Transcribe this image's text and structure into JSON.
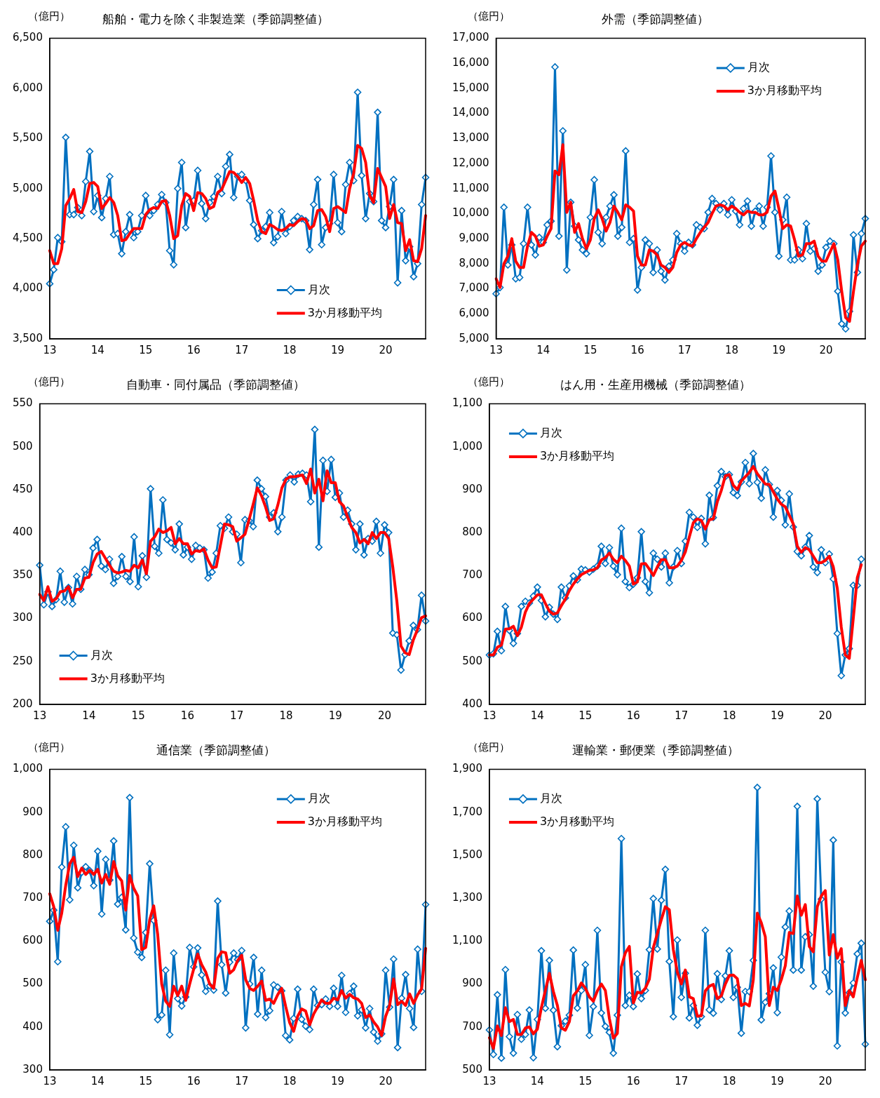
{
  "chart_data": [
    {
      "type": "line",
      "title": "船舶・電力を除く非製造業（季節調整値）",
      "ylabel": "（億円）",
      "legend": "bottom right",
      "categories": [
        "13",
        null,
        null,
        null,
        null,
        null,
        null,
        null,
        null,
        null,
        null,
        null,
        "14",
        null,
        null,
        null,
        null,
        null,
        null,
        null,
        null,
        null,
        null,
        null,
        "15",
        null,
        null,
        null,
        null,
        null,
        null,
        null,
        null,
        null,
        null,
        null,
        "16",
        null,
        null,
        null,
        null,
        null,
        null,
        null,
        null,
        null,
        null,
        null,
        "17",
        null,
        null,
        null,
        null,
        null,
        null,
        null,
        null,
        null,
        null,
        null,
        "18",
        null,
        null,
        null,
        null,
        null,
        null,
        null,
        null,
        null,
        null,
        null,
        "19",
        null,
        null,
        null,
        null,
        null,
        null,
        null,
        null,
        null,
        null,
        null,
        "20",
        null,
        null,
        null,
        null,
        null,
        null,
        null,
        null,
        null,
        null
      ],
      "ylim": [
        3500,
        6500
      ],
      "yticks": [
        {
          "value": 3500,
          "label": "3,500"
        },
        {
          "value": 4000,
          "label": "4,000"
        },
        {
          "value": 4500,
          "label": "4,500"
        },
        {
          "value": 5000,
          "label": "5,000"
        },
        {
          "value": 5500,
          "label": "5,500"
        },
        {
          "value": 6000,
          "label": "6,000"
        },
        {
          "value": 6500,
          "label": "6,500"
        }
      ],
      "series": [
        {
          "name": "月次",
          "color": "#0070c0",
          "marker": "diamond",
          "values": [
            4050,
            4190,
            4510,
            4470,
            5510,
            4740,
            4740,
            4810,
            4730,
            5070,
            5370,
            4770,
            4930,
            4710,
            4900,
            5120,
            4540,
            4550,
            4350,
            4570,
            4740,
            4510,
            4570,
            4730,
            4930,
            4730,
            4780,
            4840,
            4940,
            4860,
            4380,
            4240,
            5000,
            5260,
            4610,
            4870,
            4880,
            5180,
            4850,
            4700,
            4860,
            4920,
            5120,
            4950,
            5220,
            5340,
            4910,
            5120,
            5140,
            5080,
            4880,
            4640,
            4500,
            4580,
            4620,
            4760,
            4460,
            4520,
            4770,
            4550,
            4620,
            4680,
            4720,
            4700,
            4680,
            4390,
            4840,
            5090,
            4440,
            4610,
            4650,
            5140,
            4660,
            4570,
            5040,
            5260,
            5080,
            5960,
            5130,
            4700,
            4950,
            4870,
            5760,
            4680,
            4610,
            4820,
            5090,
            4060,
            4780,
            4280,
            4420,
            4120,
            4250,
            4840,
            5110
          ]
        },
        {
          "name": "3か月移動平均",
          "color": "#ff0000",
          "marker": "none",
          "values": [
            4380,
            4250,
            4250,
            4400,
            4830,
            4900,
            4990,
            4770,
            4760,
            4870,
            5050,
            5060,
            5020,
            4800,
            4850,
            4910,
            4860,
            4730,
            4480,
            4490,
            4550,
            4600,
            4600,
            4600,
            4740,
            4790,
            4810,
            4800,
            4870,
            4880,
            4730,
            4500,
            4530,
            4830,
            4950,
            4920,
            4780,
            4960,
            4950,
            4900,
            4800,
            4820,
            4960,
            4990,
            5080,
            5170,
            5160,
            5120,
            5060,
            5110,
            5050,
            4880,
            4680,
            4570,
            4550,
            4640,
            4620,
            4590,
            4580,
            4600,
            4640,
            4630,
            4670,
            4700,
            4690,
            4600,
            4630,
            4780,
            4790,
            4720,
            4570,
            4800,
            4820,
            4790,
            4760,
            5000,
            5150,
            5430,
            5400,
            5260,
            4930,
            4860,
            5200,
            5110,
            5020,
            4700,
            4840,
            4660,
            4650,
            4380,
            4490,
            4280,
            4270,
            4400,
            4730
          ]
        }
      ]
    },
    {
      "type": "line",
      "title": "外需（季節調整値）",
      "ylabel": "（億円）",
      "legend": "top right",
      "categories": [
        "13",
        null,
        null,
        null,
        null,
        null,
        null,
        null,
        null,
        null,
        null,
        null,
        "14",
        null,
        null,
        null,
        null,
        null,
        null,
        null,
        null,
        null,
        null,
        null,
        "15",
        null,
        null,
        null,
        null,
        null,
        null,
        null,
        null,
        null,
        null,
        null,
        "16",
        null,
        null,
        null,
        null,
        null,
        null,
        null,
        null,
        null,
        null,
        null,
        "17",
        null,
        null,
        null,
        null,
        null,
        null,
        null,
        null,
        null,
        null,
        null,
        "18",
        null,
        null,
        null,
        null,
        null,
        null,
        null,
        null,
        null,
        null,
        null,
        "19",
        null,
        null,
        null,
        null,
        null,
        null,
        null,
        null,
        null,
        null,
        null,
        "20",
        null,
        null,
        null,
        null,
        null,
        null,
        null,
        null,
        null,
        null
      ],
      "ylim": [
        5000,
        17000
      ],
      "yticks": [
        {
          "value": 5000,
          "label": "5,000"
        },
        {
          "value": 6000,
          "label": "6,000"
        },
        {
          "value": 7000,
          "label": "7,000"
        },
        {
          "value": 8000,
          "label": "8,000"
        },
        {
          "value": 9000,
          "label": "9,000"
        },
        {
          "value": 10000,
          "label": "10,000"
        },
        {
          "value": 11000,
          "label": "11,000"
        },
        {
          "value": 12000,
          "label": "12,000"
        },
        {
          "value": 13000,
          "label": "13,000"
        },
        {
          "value": 14000,
          "label": "14,000"
        },
        {
          "value": 15000,
          "label": "15,000"
        },
        {
          "value": 16000,
          "label": "16,000"
        },
        {
          "value": 17000,
          "label": "17,000"
        }
      ],
      "series": [
        {
          "name": "月次",
          "color": "#0070c0",
          "marker": "diamond",
          "values": [
            6800,
            7050,
            10250,
            7950,
            8750,
            7400,
            7450,
            8800,
            10250,
            8750,
            8350,
            9050,
            8850,
            9550,
            9700,
            15850,
            9100,
            13300,
            7750,
            10450,
            9500,
            8950,
            8550,
            8400,
            9850,
            11350,
            9250,
            8800,
            9850,
            10300,
            10750,
            9100,
            9450,
            12500,
            8850,
            9000,
            6950,
            7850,
            8950,
            8800,
            7650,
            8550,
            7700,
            7350,
            7900,
            8150,
            9200,
            8800,
            8500,
            8850,
            8750,
            9550,
            9450,
            9400,
            10050,
            10600,
            10400,
            10150,
            10400,
            9950,
            10550,
            10100,
            9550,
            10200,
            10500,
            9500,
            10100,
            10300,
            9500,
            10250,
            12300,
            10050,
            8300,
            9750,
            10650,
            8150,
            8150,
            8550,
            8200,
            9600,
            8500,
            8600,
            7700,
            7950,
            8650,
            8900,
            8800,
            6900,
            5600,
            5400,
            6100,
            9150,
            7650,
            9200,
            9800
          ]
        },
        {
          "name": "3か月移動平均",
          "color": "#ff0000",
          "marker": "none",
          "values": [
            7400,
            7050,
            8000,
            8300,
            9000,
            8100,
            7850,
            7850,
            8700,
            9250,
            9100,
            8700,
            8750,
            9100,
            9400,
            11700,
            11550,
            12750,
            10050,
            10450,
            9250,
            9600,
            9000,
            8600,
            8950,
            9800,
            10150,
            9800,
            9300,
            9650,
            10300,
            10050,
            9750,
            10350,
            10250,
            10100,
            8300,
            7950,
            7950,
            8550,
            8500,
            8350,
            7950,
            7850,
            7650,
            7850,
            8450,
            8750,
            8850,
            8750,
            8700,
            9000,
            9250,
            9450,
            9650,
            10000,
            10300,
            10350,
            10300,
            10150,
            10300,
            10200,
            10050,
            9950,
            10100,
            10050,
            10050,
            9950,
            9950,
            10050,
            10700,
            10900,
            10200,
            9400,
            9550,
            9500,
            8950,
            8300,
            8350,
            8800,
            8800,
            8900,
            8300,
            8100,
            8100,
            8450,
            8800,
            8150,
            6900,
            5850,
            5700,
            6900,
            7950,
            8700,
            8900
          ]
        }
      ]
    },
    {
      "type": "line",
      "title": "自動車・同付属品（季節調整値）",
      "ylabel": "（億円）",
      "legend": "bottom left",
      "categories": [
        "13",
        null,
        null,
        null,
        null,
        null,
        null,
        null,
        null,
        null,
        null,
        null,
        "14",
        null,
        null,
        null,
        null,
        null,
        null,
        null,
        null,
        null,
        null,
        null,
        "15",
        null,
        null,
        null,
        null,
        null,
        null,
        null,
        null,
        null,
        null,
        null,
        "16",
        null,
        null,
        null,
        null,
        null,
        null,
        null,
        null,
        null,
        null,
        null,
        "17",
        null,
        null,
        null,
        null,
        null,
        null,
        null,
        null,
        null,
        null,
        null,
        "18",
        null,
        null,
        null,
        null,
        null,
        null,
        null,
        null,
        null,
        null,
        null,
        "19",
        null,
        null,
        null,
        null,
        null,
        null,
        null,
        null,
        null,
        null,
        null,
        "20",
        null,
        null,
        null,
        null,
        null,
        null,
        null,
        null,
        null,
        null
      ],
      "ylim": [
        200,
        550
      ],
      "yticks": [
        200,
        250,
        300,
        350,
        400,
        450,
        500,
        550
      ],
      "series": [
        {
          "name": "月次",
          "color": "#0070c0",
          "marker": "diamond",
          "values": [
            362,
            316,
            331,
            314,
            322,
            355,
            319,
            336,
            317,
            349,
            334,
            357,
            351,
            382,
            392,
            361,
            357,
            369,
            341,
            349,
            372,
            349,
            343,
            395,
            337,
            373,
            348,
            451,
            384,
            376,
            438,
            392,
            388,
            380,
            410,
            374,
            383,
            369,
            385,
            382,
            380,
            347,
            354,
            376,
            408,
            405,
            418,
            401,
            398,
            365,
            415,
            414,
            407,
            461,
            451,
            442,
            418,
            423,
            401,
            418,
            461,
            467,
            459,
            468,
            469,
            467,
            436,
            520,
            383,
            484,
            448,
            485,
            441,
            446,
            418,
            426,
            410,
            380,
            410,
            374,
            393,
            390,
            413,
            376,
            409,
            400,
            283,
            281,
            240,
            258,
            274,
            292,
            287,
            327,
            297
          ]
        },
        {
          "name": "3か月移動平均",
          "color": "#ff0000",
          "marker": "none",
          "values": [
            328,
            321,
            337,
            320,
            323,
            331,
            332,
            337,
            324,
            334,
            334,
            347,
            348,
            365,
            375,
            378,
            370,
            362,
            355,
            353,
            354,
            356,
            355,
            362,
            359,
            368,
            352,
            390,
            395,
            404,
            400,
            402,
            406,
            387,
            393,
            387,
            387,
            375,
            379,
            378,
            381,
            368,
            359,
            360,
            385,
            410,
            409,
            407,
            390,
            394,
            398,
            415,
            433,
            452,
            443,
            430,
            414,
            416,
            432,
            452,
            462,
            465,
            465,
            466,
            467,
            457,
            474,
            446,
            462,
            437,
            472,
            458,
            458,
            436,
            431,
            418,
            406,
            400,
            388,
            392,
            387,
            400,
            393,
            400,
            400,
            393,
            360,
            320,
            268,
            260,
            258,
            275,
            287,
            301,
            303
          ]
        }
      ]
    },
    {
      "type": "line",
      "title": "はん用・生産用機械（季節調整値）",
      "ylabel": "（億円）",
      "legend": "top left",
      "categories": [
        "13",
        null,
        null,
        null,
        null,
        null,
        null,
        null,
        null,
        null,
        null,
        null,
        "14",
        null,
        null,
        null,
        null,
        null,
        null,
        null,
        null,
        null,
        null,
        null,
        "15",
        null,
        null,
        null,
        null,
        null,
        null,
        null,
        null,
        null,
        null,
        null,
        "16",
        null,
        null,
        null,
        null,
        null,
        null,
        null,
        null,
        null,
        null,
        null,
        "17",
        null,
        null,
        null,
        null,
        null,
        null,
        null,
        null,
        null,
        null,
        null,
        "18",
        null,
        null,
        null,
        null,
        null,
        null,
        null,
        null,
        null,
        null,
        null,
        "19",
        null,
        null,
        null,
        null,
        null,
        null,
        null,
        null,
        null,
        null,
        null,
        "20",
        null,
        null,
        null,
        null,
        null,
        null,
        null,
        null,
        null,
        null
      ],
      "ylim": [
        400,
        1100
      ],
      "yticks": [
        400,
        500,
        600,
        700,
        800,
        900,
        {
          "value": 1000,
          "label": "1,000"
        },
        {
          "value": 1100,
          "label": "1,100"
        }
      ],
      "series": [
        {
          "name": "月次",
          "color": "#0070c0",
          "marker": "diamond",
          "values": [
            515,
            518,
            570,
            525,
            628,
            572,
            542,
            565,
            628,
            640,
            636,
            652,
            673,
            642,
            604,
            626,
            610,
            598,
            673,
            648,
            676,
            699,
            690,
            715,
            713,
            708,
            715,
            722,
            768,
            728,
            765,
            722,
            702,
            810,
            686,
            672,
            680,
            695,
            802,
            686,
            660,
            752,
            738,
            720,
            752,
            683,
            720,
            758,
            728,
            780,
            847,
            836,
            812,
            833,
            774,
            887,
            835,
            909,
            942,
            930,
            935,
            893,
            886,
            918,
            963,
            914,
            984,
            917,
            880,
            946,
            912,
            836,
            898,
            875,
            818,
            890,
            813,
            756,
            746,
            766,
            793,
            720,
            707,
            760,
            730,
            750,
            692,
            565,
            467,
            515,
            530,
            677,
            677,
            738,
            null
          ]
        },
        {
          "name": "3か月移動平均",
          "color": "#ff0000",
          "marker": "none",
          "values": [
            515,
            515,
            533,
            538,
            575,
            576,
            582,
            560,
            580,
            615,
            635,
            645,
            655,
            655,
            635,
            617,
            610,
            613,
            630,
            645,
            665,
            680,
            692,
            702,
            707,
            712,
            713,
            718,
            736,
            742,
            752,
            738,
            730,
            745,
            735,
            722,
            680,
            685,
            727,
            728,
            715,
            700,
            720,
            737,
            737,
            718,
            718,
            722,
            735,
            755,
            790,
            823,
            832,
            828,
            808,
            830,
            832,
            872,
            898,
            932,
            935,
            910,
            900,
            920,
            930,
            940,
            954,
            937,
            925,
            913,
            912,
            895,
            878,
            866,
            860,
            840,
            820,
            768,
            754,
            765,
            760,
            745,
            730,
            730,
            735,
            745,
            720,
            670,
            580,
            515,
            507,
            600,
            695,
            725,
            null
          ]
        }
      ]
    },
    {
      "type": "line",
      "title": "通信業（季節調整値）",
      "ylabel": "（億円）",
      "legend": "top right",
      "categories": [
        "13",
        null,
        null,
        null,
        null,
        null,
        null,
        null,
        null,
        null,
        null,
        null,
        "14",
        null,
        null,
        null,
        null,
        null,
        null,
        null,
        null,
        null,
        null,
        null,
        "15",
        null,
        null,
        null,
        null,
        null,
        null,
        null,
        null,
        null,
        null,
        null,
        "16",
        null,
        null,
        null,
        null,
        null,
        null,
        null,
        null,
        null,
        null,
        null,
        "17",
        null,
        null,
        null,
        null,
        null,
        null,
        null,
        null,
        null,
        null,
        null,
        "18",
        null,
        null,
        null,
        null,
        null,
        null,
        null,
        null,
        null,
        null,
        null,
        "19",
        null,
        null,
        null,
        null,
        null,
        null,
        null,
        null,
        null,
        null,
        null,
        "20",
        null,
        null,
        null,
        null,
        null,
        null,
        null,
        null,
        null,
        null
      ],
      "ylim": [
        300,
        1000
      ],
      "yticks": [
        300,
        400,
        500,
        600,
        700,
        800,
        900,
        {
          "value": 1000,
          "label": "1,000"
        }
      ],
      "series": [
        {
          "name": "月次",
          "color": "#0070c0",
          "marker": "diamond",
          "values": [
            646,
            672,
            552,
            772,
            866,
            696,
            823,
            724,
            760,
            773,
            764,
            729,
            809,
            663,
            790,
            742,
            833,
            686,
            702,
            626,
            934,
            607,
            574,
            562,
            620,
            780,
            648,
            417,
            428,
            532,
            382,
            572,
            466,
            449,
            470,
            585,
            540,
            584,
            521,
            483,
            496,
            486,
            693,
            545,
            479,
            551,
            572,
            557,
            578,
            398,
            500,
            562,
            430,
            532,
            422,
            438,
            498,
            493,
            484,
            380,
            370,
            420,
            488,
            418,
            402,
            394,
            488,
            450,
            452,
            465,
            448,
            490,
            448,
            520,
            434,
            478,
            495,
            426,
            440,
            398,
            443,
            388,
            367,
            384,
            532,
            446,
            558,
            352,
            467,
            522,
            443,
            399,
            581,
            483,
            685
          ]
        },
        {
          "name": "3か月移動平均",
          "color": "#ff0000",
          "marker": "none",
          "values": [
            710,
            680,
            625,
            665,
            730,
            780,
            795,
            750,
            770,
            755,
            765,
            755,
            767,
            735,
            755,
            732,
            785,
            752,
            740,
            672,
            753,
            723,
            705,
            580,
            585,
            650,
            682,
            615,
            500,
            460,
            448,
            495,
            473,
            495,
            462,
            500,
            535,
            570,
            545,
            528,
            500,
            490,
            560,
            575,
            573,
            525,
            533,
            555,
            567,
            510,
            490,
            485,
            495,
            507,
            462,
            465,
            455,
            475,
            490,
            448,
            410,
            390,
            425,
            442,
            437,
            405,
            430,
            447,
            463,
            455,
            455,
            467,
            463,
            485,
            467,
            476,
            468,
            465,
            455,
            422,
            428,
            412,
            400,
            380,
            425,
            450,
            512,
            452,
            460,
            450,
            477,
            455,
            475,
            489,
            583
          ]
        }
      ]
    },
    {
      "type": "line",
      "title": "運輸業・郵便業（季節調整値）",
      "ylabel": "（億円）",
      "legend": "top left",
      "categories": [
        "13",
        null,
        null,
        null,
        null,
        null,
        null,
        null,
        null,
        null,
        null,
        null,
        "14",
        null,
        null,
        null,
        null,
        null,
        null,
        null,
        null,
        null,
        null,
        null,
        "15",
        null,
        null,
        null,
        null,
        null,
        null,
        null,
        null,
        null,
        null,
        null,
        "16",
        null,
        null,
        null,
        null,
        null,
        null,
        null,
        null,
        null,
        null,
        null,
        "17",
        null,
        null,
        null,
        null,
        null,
        null,
        null,
        null,
        null,
        null,
        null,
        "18",
        null,
        null,
        null,
        null,
        null,
        null,
        null,
        null,
        null,
        null,
        null,
        "19",
        null,
        null,
        null,
        null,
        null,
        null,
        null,
        null,
        null,
        null,
        null,
        "20",
        null,
        null,
        null,
        null,
        null,
        null,
        null,
        null,
        null,
        null
      ],
      "ylim": [
        500,
        1900
      ],
      "yticks": [
        500,
        700,
        900,
        {
          "value": 1100,
          "label": "1,100"
        },
        {
          "value": 1300,
          "label": "1,300"
        },
        {
          "value": 1500,
          "label": "1,500"
        },
        {
          "value": 1700,
          "label": "1,700"
        },
        {
          "value": 1900,
          "label": "1,900"
        }
      ],
      "series": [
        {
          "name": "月次",
          "color": "#0070c0",
          "marker": "diamond",
          "values": [
            686,
            572,
            850,
            555,
            967,
            655,
            578,
            758,
            643,
            665,
            779,
            557,
            735,
            1055,
            787,
            1010,
            778,
            608,
            706,
            727,
            755,
            1058,
            788,
            870,
            990,
            661,
            795,
            1150,
            765,
            703,
            675,
            578,
            755,
            1577,
            800,
            848,
            795,
            947,
            832,
            870,
            1060,
            1298,
            1063,
            1290,
            1434,
            1005,
            748,
            1105,
            838,
            950,
            742,
            800,
            708,
            748,
            1150,
            780,
            764,
            948,
            828,
            938,
            1055,
            838,
            885,
            671,
            865,
            865,
            1010,
            1815,
            733,
            815,
            855,
            975,
            767,
            1025,
            1165,
            1240,
            965,
            1727,
            965,
            1120,
            1130,
            890,
            1762,
            1295,
            955,
            865,
            1570,
            612,
            1003,
            765,
            860,
            905,
            1040,
            1090,
            620
          ]
        },
        {
          "name": "3か月移動平均",
          "color": "#ff0000",
          "marker": "none",
          "values": [
            650,
            600,
            705,
            660,
            790,
            725,
            735,
            665,
            665,
            695,
            700,
            668,
            690,
            790,
            870,
            950,
            865,
            800,
            695,
            685,
            725,
            845,
            868,
            905,
            880,
            840,
            820,
            868,
            900,
            870,
            740,
            648,
            670,
            980,
            1045,
            1075,
            812,
            862,
            858,
            880,
            922,
            1070,
            1135,
            1200,
            1260,
            1245,
            1060,
            955,
            900,
            965,
            840,
            832,
            750,
            752,
            868,
            890,
            898,
            832,
            845,
            900,
            940,
            942,
            925,
            800,
            810,
            798,
            920,
            1230,
            1185,
            1120,
            800,
            885,
            870,
            920,
            985,
            1140,
            1135,
            1310,
            1220,
            1270,
            1075,
            1050,
            1260,
            1310,
            1335,
            1035,
            1130,
            1020,
            1065,
            800,
            870,
            840,
            930,
            1010,
            920
          ]
        }
      ]
    }
  ]
}
